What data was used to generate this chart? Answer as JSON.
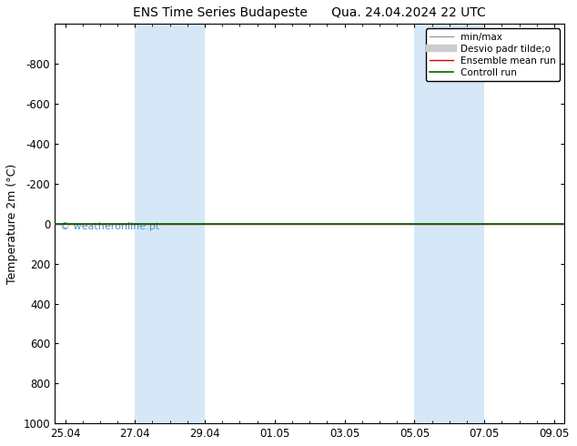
{
  "title": "ENS Time Series Budapeste      Qua. 24.04.2024 22 UTC",
  "ylabel": "Temperature 2m (°C)",
  "ylim_top": -1000,
  "ylim_bottom": 1000,
  "yticks": [
    -800,
    -600,
    -400,
    -200,
    0,
    200,
    400,
    600,
    800,
    1000
  ],
  "xtick_labels": [
    "25.04",
    "27.04",
    "29.04",
    "01.05",
    "03.05",
    "05.05",
    "07.05",
    "09.05"
  ],
  "xtick_positions": [
    0,
    2,
    4,
    6,
    8,
    10,
    12,
    14
  ],
  "x_min": -0.3,
  "x_max": 14.3,
  "blue_shading": [
    {
      "x_start": 2,
      "x_end": 3
    },
    {
      "x_start": 3,
      "x_end": 4
    },
    {
      "x_start": 10,
      "x_end": 11
    },
    {
      "x_start": 11,
      "x_end": 12
    }
  ],
  "blue_shade_color": "#d6e8f7",
  "green_line_y": 0,
  "red_line_y": 0,
  "watermark": "© weatheronline.pt",
  "watermark_color": "#4499cc",
  "legend_entries": [
    {
      "label": "min/max",
      "color": "#999999",
      "lw": 1.0
    },
    {
      "label": "Desvio padr tilde;o",
      "color": "#cccccc",
      "lw": 6
    },
    {
      "label": "Ensemble mean run",
      "color": "#cc0000",
      "lw": 1.0
    },
    {
      "label": "Controll run",
      "color": "#006600",
      "lw": 1.2
    }
  ],
  "bg_color": "#ffffff",
  "title_fontsize": 10,
  "axis_label_fontsize": 9,
  "tick_fontsize": 8.5,
  "legend_fontsize": 7.5
}
